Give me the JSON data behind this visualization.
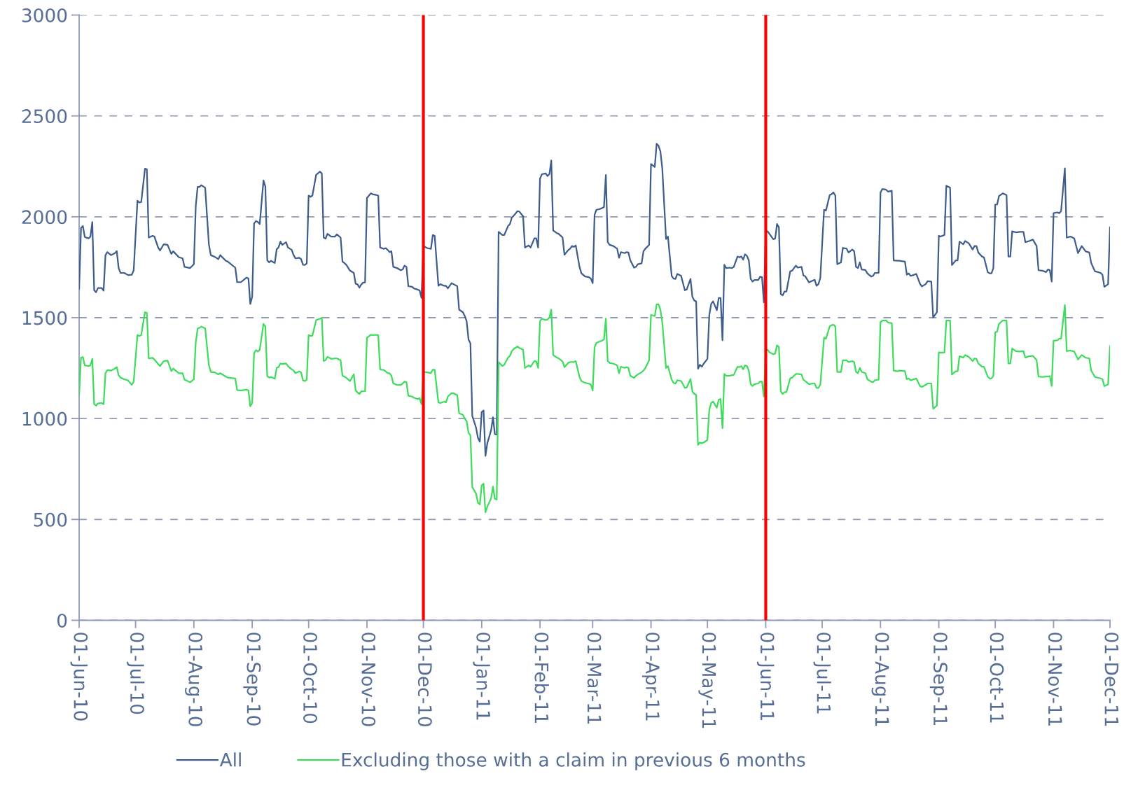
{
  "chart_data": {
    "type": "line",
    "x": [
      "2010-06-01",
      "2010-06-02",
      "2010-06-03",
      "2010-06-04",
      "2010-06-06",
      "2010-06-07",
      "2010-06-08",
      "2010-06-09",
      "2010-06-10",
      "2010-06-11",
      "2010-06-13",
      "2010-06-14",
      "2010-06-15",
      "2010-06-16",
      "2010-06-18",
      "2010-06-20",
      "2010-06-21",
      "2010-06-22",
      "2010-06-23",
      "2010-06-25",
      "2010-06-27",
      "2010-06-29",
      "2010-06-30",
      "2010-07-02",
      "2010-07-03",
      "2010-07-04",
      "2010-07-06",
      "2010-07-07",
      "2010-07-08",
      "2010-07-10",
      "2010-07-11",
      "2010-07-13",
      "2010-07-14",
      "2010-07-16",
      "2010-07-18",
      "2010-07-20",
      "2010-07-21",
      "2010-07-24",
      "2010-07-26",
      "2010-07-27",
      "2010-07-30",
      "2010-08-01",
      "2010-08-02",
      "2010-08-03",
      "2010-08-04",
      "2010-08-05",
      "2010-08-07",
      "2010-08-09",
      "2010-08-10",
      "2010-08-12",
      "2010-08-14",
      "2010-08-15",
      "2010-08-18",
      "2010-08-19",
      "2010-08-23",
      "2010-08-24",
      "2010-08-26",
      "2010-08-29",
      "2010-08-30",
      "2010-08-31",
      "2010-09-01",
      "2010-09-02",
      "2010-09-03",
      "2010-09-04",
      "2010-09-05",
      "2010-09-07",
      "2010-09-08",
      "2010-09-09",
      "2010-09-10",
      "2010-09-11",
      "2010-09-13",
      "2010-09-14",
      "2010-09-15",
      "2010-09-16",
      "2010-09-17",
      "2010-09-19",
      "2010-09-20",
      "2010-09-22",
      "2010-09-23",
      "2010-09-24",
      "2010-09-26",
      "2010-09-27",
      "2010-09-28",
      "2010-09-29",
      "2010-09-30",
      "2010-10-01",
      "2010-10-02",
      "2010-10-03",
      "2010-10-05",
      "2010-10-07",
      "2010-10-08",
      "2010-10-09",
      "2010-10-10",
      "2010-10-11",
      "2010-10-13",
      "2010-10-15",
      "2010-10-16",
      "2010-10-18",
      "2010-10-19",
      "2010-10-20",
      "2010-10-21",
      "2010-10-23",
      "2010-10-25",
      "2010-10-26",
      "2010-10-27",
      "2010-10-28",
      "2010-10-29",
      "2010-10-30",
      "2010-10-31",
      "2010-11-01",
      "2010-11-03",
      "2010-11-04",
      "2010-11-06",
      "2010-11-07",
      "2010-11-08",
      "2010-11-10",
      "2010-11-11",
      "2010-11-12",
      "2010-11-13",
      "2010-11-14",
      "2010-11-15",
      "2010-11-17",
      "2010-11-19",
      "2010-11-20",
      "2010-11-21",
      "2010-11-22",
      "2010-11-23",
      "2010-11-25",
      "2010-11-26",
      "2010-11-28",
      "2010-11-29",
      "2010-11-30",
      "2010-12-01",
      "2010-12-03",
      "2010-12-05",
      "2010-12-06",
      "2010-12-07",
      "2010-12-09",
      "2010-12-10",
      "2010-12-12",
      "2010-12-13",
      "2010-12-14",
      "2010-12-16",
      "2010-12-17",
      "2010-12-19",
      "2010-12-20",
      "2010-12-22",
      "2010-12-23",
      "2010-12-24",
      "2010-12-25",
      "2010-12-26",
      "2010-12-27",
      "2010-12-29",
      "2010-12-30",
      "2010-12-31",
      "2011-01-01",
      "2011-01-02",
      "2011-01-03",
      "2011-01-04",
      "2011-01-06",
      "2011-01-07",
      "2011-01-08",
      "2011-01-09",
      "2011-01-10",
      "2011-01-12",
      "2011-01-13",
      "2011-01-15",
      "2011-01-16",
      "2011-01-17",
      "2011-01-18",
      "2011-01-20",
      "2011-01-21",
      "2011-01-23",
      "2011-01-24",
      "2011-01-26",
      "2011-01-27",
      "2011-01-29",
      "2011-01-30",
      "2011-01-31",
      "2011-02-01",
      "2011-02-02",
      "2011-02-04",
      "2011-02-05",
      "2011-02-06",
      "2011-02-07",
      "2011-02-08",
      "2011-02-10",
      "2011-02-11",
      "2011-02-13",
      "2011-02-14",
      "2011-02-16",
      "2011-02-17",
      "2011-02-18",
      "2011-02-19",
      "2011-02-20",
      "2011-02-22",
      "2011-02-23",
      "2011-02-25",
      "2011-02-27",
      "2011-02-28",
      "2011-03-01",
      "2011-03-02",
      "2011-03-03",
      "2011-03-05",
      "2011-03-06",
      "2011-03-07",
      "2011-03-08",
      "2011-03-09",
      "2011-03-10",
      "2011-03-12",
      "2011-03-14",
      "2011-03-15",
      "2011-03-16",
      "2011-03-18",
      "2011-03-19",
      "2011-03-20",
      "2011-03-21",
      "2011-03-23",
      "2011-03-24",
      "2011-03-25",
      "2011-03-27",
      "2011-03-28",
      "2011-03-29",
      "2011-03-31",
      "2011-04-01",
      "2011-04-03",
      "2011-04-04",
      "2011-04-05",
      "2011-04-06",
      "2011-04-07",
      "2011-04-09",
      "2011-04-10",
      "2011-04-12",
      "2011-04-13",
      "2011-04-14",
      "2011-04-15",
      "2011-04-17",
      "2011-04-19",
      "2011-04-20",
      "2011-04-22",
      "2011-04-23",
      "2011-04-24",
      "2011-04-25",
      "2011-04-26",
      "2011-04-27",
      "2011-04-28",
      "2011-04-29",
      "2011-05-01",
      "2011-05-02",
      "2011-05-03",
      "2011-05-04",
      "2011-05-06",
      "2011-05-07",
      "2011-05-08",
      "2011-05-09",
      "2011-05-10",
      "2011-05-11",
      "2011-05-13",
      "2011-05-14",
      "2011-05-15",
      "2011-05-17",
      "2011-05-18",
      "2011-05-19",
      "2011-05-20",
      "2011-05-21",
      "2011-05-22",
      "2011-05-23",
      "2011-05-24",
      "2011-05-25",
      "2011-05-26",
      "2011-05-28",
      "2011-05-29",
      "2011-05-30",
      "2011-05-31",
      "2011-06-01",
      "2011-06-02",
      "2011-06-03",
      "2011-06-05",
      "2011-06-06",
      "2011-06-07",
      "2011-06-08",
      "2011-06-09",
      "2011-06-10",
      "2011-06-11",
      "2011-06-12",
      "2011-06-14",
      "2011-06-15",
      "2011-06-17",
      "2011-06-18",
      "2011-06-20",
      "2011-06-21",
      "2011-06-22",
      "2011-06-24",
      "2011-06-26",
      "2011-06-27",
      "2011-06-28",
      "2011-06-29",
      "2011-06-30",
      "2011-07-02",
      "2011-07-03",
      "2011-07-05",
      "2011-07-06",
      "2011-07-07",
      "2011-07-08",
      "2011-07-09",
      "2011-07-11",
      "2011-07-12",
      "2011-07-14",
      "2011-07-15",
      "2011-07-17",
      "2011-07-18",
      "2011-07-19",
      "2011-07-20",
      "2011-07-21",
      "2011-07-22",
      "2011-07-24",
      "2011-07-25",
      "2011-07-27",
      "2011-07-28",
      "2011-07-29",
      "2011-07-31",
      "2011-08-01",
      "2011-08-02",
      "2011-08-04",
      "2011-08-05",
      "2011-08-07",
      "2011-08-08",
      "2011-08-10",
      "2011-08-11",
      "2011-08-14",
      "2011-08-15",
      "2011-08-16",
      "2011-08-17",
      "2011-08-19",
      "2011-08-20",
      "2011-08-22",
      "2011-08-23",
      "2011-08-25",
      "2011-08-26",
      "2011-08-28",
      "2011-08-29",
      "2011-08-31",
      "2011-09-01",
      "2011-09-02",
      "2011-09-04",
      "2011-09-05",
      "2011-09-07",
      "2011-09-08",
      "2011-09-10",
      "2011-09-11",
      "2011-09-12",
      "2011-09-14",
      "2011-09-15",
      "2011-09-17",
      "2011-09-19",
      "2011-09-20",
      "2011-09-21",
      "2011-09-22",
      "2011-09-24",
      "2011-09-25",
      "2011-09-27",
      "2011-09-28",
      "2011-09-29",
      "2011-09-30",
      "2011-10-01",
      "2011-10-02",
      "2011-10-03",
      "2011-10-05",
      "2011-10-07",
      "2011-10-08",
      "2011-10-09",
      "2011-10-10",
      "2011-10-12",
      "2011-10-14",
      "2011-10-16",
      "2011-10-17",
      "2011-10-19",
      "2011-10-21",
      "2011-10-23",
      "2011-10-24",
      "2011-10-26",
      "2011-10-28",
      "2011-10-29",
      "2011-10-30",
      "2011-10-31",
      "2011-11-01",
      "2011-11-03",
      "2011-11-04",
      "2011-11-05",
      "2011-11-07",
      "2011-11-08",
      "2011-11-10",
      "2011-11-12",
      "2011-11-14",
      "2011-11-16",
      "2011-11-18",
      "2011-11-20",
      "2011-11-21",
      "2011-11-23",
      "2011-11-26",
      "2011-11-27",
      "2011-11-28",
      "2011-11-30",
      "2011-12-01"
    ],
    "series": [
      {
        "name": "All",
        "color": "#3e5c8c",
        "values": [
          1643,
          1945,
          1954,
          1900,
          1893,
          1902,
          1974,
          1636,
          1626,
          1647,
          1647,
          1634,
          1810,
          1825,
          1810,
          1820,
          1830,
          1746,
          1722,
          1722,
          1711,
          1713,
          1735,
          2080,
          2071,
          2073,
          2238,
          2236,
          1897,
          1906,
          1902,
          1848,
          1833,
          1864,
          1861,
          1816,
          1829,
          1800,
          1794,
          1752,
          1746,
          1765,
          2054,
          2148,
          2148,
          2157,
          2144,
          1861,
          1810,
          1802,
          1790,
          1810,
          1782,
          1778,
          1748,
          1676,
          1676,
          1699,
          1694,
          1568,
          1604,
          1967,
          1979,
          1974,
          1964,
          2180,
          2150,
          1784,
          1774,
          1782,
          1771,
          1839,
          1848,
          1877,
          1861,
          1874,
          1848,
          1836,
          1810,
          1794,
          1797,
          1790,
          1762,
          1761,
          1769,
          2105,
          2099,
          2105,
          2208,
          2224,
          2215,
          1897,
          1892,
          1916,
          1902,
          1902,
          1913,
          1897,
          1778,
          1771,
          1762,
          1733,
          1722,
          1668,
          1665,
          1649,
          1665,
          1674,
          1675,
          2093,
          2116,
          2112,
          2108,
          2105,
          1848,
          1841,
          1845,
          1836,
          1825,
          1829,
          1752,
          1746,
          1735,
          1739,
          1758,
          1752,
          1656,
          1653,
          1645,
          1639,
          1635,
          1598,
          1855,
          1845,
          1841,
          1910,
          1906,
          1658,
          1666,
          1658,
          1658,
          1645,
          1671,
          1666,
          1656,
          1540,
          1527,
          1508,
          1482,
          1392,
          1373,
          1013,
          955,
          904,
          885,
          1032,
          1040,
          815,
          878,
          942,
          1006,
          923,
          920,
          1925,
          1910,
          1910,
          1954,
          1964,
          1996,
          2005,
          2028,
          2026,
          2003,
          1848,
          1858,
          1848,
          1893,
          1893,
          1848,
          2189,
          2211,
          2215,
          2202,
          2212,
          2279,
          1932,
          1919,
          1915,
          1897,
          1812,
          1835,
          1842,
          1855,
          1851,
          1858,
          1752,
          1720,
          1704,
          1701,
          1694,
          1671,
          2009,
          2035,
          2039,
          2044,
          2048,
          2207,
          1874,
          1861,
          1855,
          1842,
          1797,
          1825,
          1820,
          1825,
          1823,
          1784,
          1748,
          1752,
          1765,
          1769,
          1829,
          1842,
          1861,
          2262,
          2247,
          2362,
          2352,
          2324,
          2240,
          1890,
          1902,
          1707,
          1694,
          1692,
          1717,
          1707,
          1636,
          1640,
          1692,
          1604,
          1585,
          1581,
          1247,
          1267,
          1257,
          1272,
          1296,
          1514,
          1568,
          1581,
          1537,
          1598,
          1598,
          1388,
          1762,
          1746,
          1748,
          1746,
          1752,
          1803,
          1799,
          1803,
          1788,
          1814,
          1806,
          1784,
          1692,
          1679,
          1687,
          1687,
          1703,
          1701,
          1576,
          1925,
          1928,
          1915,
          1889,
          1892,
          1964,
          1948,
          1617,
          1611,
          1630,
          1630,
          1730,
          1733,
          1758,
          1748,
          1752,
          1710,
          1705,
          1675,
          1684,
          1688,
          1658,
          1666,
          1697,
          2035,
          2031,
          2108,
          2112,
          2121,
          2105,
          1765,
          1774,
          1846,
          1842,
          1823,
          1838,
          1829,
          1752,
          1746,
          1774,
          1739,
          1736,
          1720,
          1704,
          1707,
          1722,
          1722,
          2121,
          2138,
          2134,
          2125,
          2129,
          1784,
          1782,
          1782,
          1778,
          1713,
          1720,
          1707,
          1713,
          1717,
          1668,
          1655,
          1666,
          1681,
          1679,
          1501,
          1527,
          1906,
          1902,
          1910,
          2154,
          2144,
          1761,
          1784,
          1784,
          1877,
          1864,
          1880,
          1868,
          1838,
          1855,
          1855,
          1823,
          1803,
          1799,
          1726,
          1720,
          1720,
          1746,
          2061,
          2061,
          2103,
          2116,
          2108,
          1803,
          1803,
          1928,
          1923,
          1925,
          1925,
          1874,
          1880,
          1887,
          1855,
          1735,
          1733,
          1726,
          1739,
          1736,
          1679,
          2018,
          2022,
          2018,
          2028,
          2240,
          1897,
          1902,
          1893,
          1820,
          1855,
          1829,
          1823,
          1771,
          1730,
          1722,
          1713,
          1653,
          1666,
          1948
        ]
      },
      {
        "name": "Excluding those with a claim in previous 6 months",
        "color": "#3ddc5c",
        "values": [
          1116,
          1302,
          1305,
          1264,
          1260,
          1264,
          1296,
          1071,
          1064,
          1075,
          1077,
          1071,
          1225,
          1240,
          1238,
          1248,
          1255,
          1215,
          1203,
          1195,
          1189,
          1167,
          1183,
          1414,
          1409,
          1414,
          1527,
          1524,
          1298,
          1301,
          1293,
          1270,
          1260,
          1285,
          1287,
          1235,
          1248,
          1225,
          1225,
          1193,
          1180,
          1195,
          1379,
          1446,
          1450,
          1456,
          1447,
          1264,
          1231,
          1229,
          1219,
          1225,
          1208,
          1203,
          1199,
          1141,
          1139,
          1144,
          1139,
          1061,
          1077,
          1324,
          1339,
          1332,
          1341,
          1469,
          1456,
          1210,
          1203,
          1206,
          1197,
          1251,
          1255,
          1273,
          1270,
          1273,
          1260,
          1244,
          1238,
          1225,
          1234,
          1229,
          1189,
          1186,
          1193,
          1414,
          1409,
          1411,
          1488,
          1495,
          1499,
          1285,
          1289,
          1306,
          1296,
          1298,
          1298,
          1289,
          1212,
          1208,
          1202,
          1186,
          1219,
          1139,
          1129,
          1122,
          1135,
          1135,
          1135,
          1401,
          1415,
          1414,
          1415,
          1414,
          1244,
          1240,
          1234,
          1225,
          1225,
          1212,
          1174,
          1167,
          1167,
          1174,
          1183,
          1180,
          1113,
          1109,
          1103,
          1097,
          1101,
          1071,
          1231,
          1229,
          1225,
          1242,
          1242,
          1080,
          1077,
          1084,
          1080,
          1109,
          1126,
          1125,
          1116,
          1026,
          1019,
          1000,
          987,
          929,
          917,
          660,
          628,
          583,
          574,
          669,
          677,
          535,
          564,
          604,
          663,
          602,
          599,
          1280,
          1260,
          1267,
          1302,
          1311,
          1334,
          1345,
          1357,
          1350,
          1341,
          1251,
          1264,
          1257,
          1285,
          1283,
          1251,
          1482,
          1495,
          1488,
          1491,
          1501,
          1540,
          1315,
          1302,
          1298,
          1283,
          1255,
          1276,
          1280,
          1280,
          1280,
          1285,
          1206,
          1186,
          1177,
          1173,
          1169,
          1139,
          1353,
          1375,
          1383,
          1386,
          1392,
          1495,
          1285,
          1276,
          1272,
          1264,
          1225,
          1257,
          1251,
          1255,
          1251,
          1212,
          1202,
          1212,
          1219,
          1229,
          1238,
          1251,
          1289,
          1514,
          1508,
          1566,
          1566,
          1540,
          1476,
          1251,
          1260,
          1193,
          1177,
          1173,
          1190,
          1186,
          1152,
          1154,
          1196,
          1135,
          1122,
          1118,
          869,
          881,
          878,
          881,
          894,
          1045,
          1077,
          1084,
          1054,
          1093,
          1097,
          952,
          1221,
          1212,
          1212,
          1215,
          1216,
          1257,
          1255,
          1260,
          1244,
          1264,
          1260,
          1238,
          1170,
          1161,
          1170,
          1174,
          1183,
          1183,
          1109,
          1341,
          1341,
          1328,
          1319,
          1322,
          1363,
          1354,
          1135,
          1122,
          1131,
          1131,
          1199,
          1203,
          1221,
          1221,
          1219,
          1193,
          1186,
          1170,
          1174,
          1174,
          1152,
          1152,
          1167,
          1401,
          1396,
          1456,
          1463,
          1465,
          1456,
          1231,
          1231,
          1289,
          1289,
          1280,
          1285,
          1280,
          1231,
          1225,
          1251,
          1231,
          1225,
          1195,
          1183,
          1180,
          1190,
          1193,
          1478,
          1486,
          1486,
          1476,
          1473,
          1238,
          1234,
          1238,
          1235,
          1195,
          1199,
          1190,
          1195,
          1199,
          1161,
          1157,
          1167,
          1174,
          1174,
          1049,
          1064,
          1328,
          1326,
          1328,
          1486,
          1486,
          1219,
          1234,
          1234,
          1309,
          1302,
          1315,
          1305,
          1285,
          1298,
          1296,
          1273,
          1257,
          1257,
          1208,
          1199,
          1199,
          1212,
          1427,
          1431,
          1469,
          1486,
          1486,
          1273,
          1273,
          1347,
          1334,
          1332,
          1334,
          1302,
          1309,
          1311,
          1289,
          1208,
          1206,
          1208,
          1208,
          1210,
          1161,
          1386,
          1388,
          1396,
          1396,
          1563,
          1334,
          1337,
          1332,
          1293,
          1315,
          1302,
          1298,
          1238,
          1206,
          1199,
          1195,
          1161,
          1170,
          1359
        ]
      }
    ],
    "xlim": [
      "2010-06-01",
      "2011-12-01"
    ],
    "xticks": [
      {
        "value": "2010-06-01",
        "label": "01-Jun-10"
      },
      {
        "value": "2010-07-01",
        "label": "01-Jul-10"
      },
      {
        "value": "2010-08-01",
        "label": "01-Aug-10"
      },
      {
        "value": "2010-09-01",
        "label": "01-Sep-10"
      },
      {
        "value": "2010-10-01",
        "label": "01-Oct-10"
      },
      {
        "value": "2010-11-01",
        "label": "01-Nov-10"
      },
      {
        "value": "2010-12-01",
        "label": "01-Dec-10"
      },
      {
        "value": "2011-01-01",
        "label": "01-Jan-11"
      },
      {
        "value": "2011-02-01",
        "label": "01-Feb-11"
      },
      {
        "value": "2011-03-01",
        "label": "01-Mar-11"
      },
      {
        "value": "2011-04-01",
        "label": "01-Apr-11"
      },
      {
        "value": "2011-05-01",
        "label": "01-May-11"
      },
      {
        "value": "2011-06-01",
        "label": "01-Jun-11"
      },
      {
        "value": "2011-07-01",
        "label": "01-Jul-11"
      },
      {
        "value": "2011-08-01",
        "label": "01-Aug-11"
      },
      {
        "value": "2011-09-01",
        "label": "01-Sep-11"
      },
      {
        "value": "2011-10-01",
        "label": "01-Oct-11"
      },
      {
        "value": "2011-11-01",
        "label": "01-Nov-11"
      },
      {
        "value": "2011-12-01",
        "label": "01-Dec-11"
      }
    ],
    "ylim": [
      0,
      3000
    ],
    "yticks": [
      0,
      500,
      1000,
      1500,
      2000,
      2500,
      3000
    ],
    "grid": "y",
    "legend": "bottom",
    "line_style": "solid",
    "marker": "none",
    "ref_lines": [
      {
        "axis": "x",
        "value": "2010-12-01",
        "color": "#ff0000"
      },
      {
        "axis": "x",
        "value": "2011-06-01",
        "color": "#ff0000"
      }
    ]
  }
}
